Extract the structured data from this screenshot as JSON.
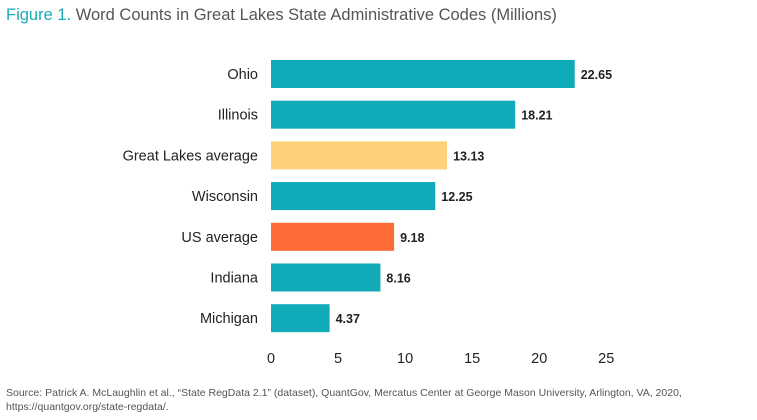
{
  "figure_label": "Figure 1.",
  "chart_data": {
    "type": "bar",
    "orientation": "horizontal",
    "title": "Word Counts in Great Lakes State Administrative Codes (Millions)",
    "categories": [
      "Ohio",
      "Illinois",
      "Great Lakes average",
      "Wisconsin",
      "US average",
      "Indiana",
      "Michigan"
    ],
    "values": [
      22.65,
      18.21,
      13.13,
      12.25,
      9.18,
      8.16,
      4.37
    ],
    "value_labels": [
      "22.65",
      "18.21",
      "13.13",
      "12.25",
      "9.18",
      "8.16",
      "4.37"
    ],
    "bar_colors": [
      "#10aab8",
      "#10aab8",
      "#fdd07a",
      "#10aab8",
      "#ff6b35",
      "#10aab8",
      "#10aab8"
    ],
    "xlim": [
      0,
      25
    ],
    "xticks": [
      0,
      5,
      10,
      15,
      20,
      25
    ],
    "grid": false,
    "legend": "none"
  },
  "source": "Source: Patrick A. McLaughlin et al., “State RegData 2.1” (dataset), QuantGov, Mercatus Center at George Mason University, Arlington, VA, 2020, https://quantgov.org/state-regdata/."
}
